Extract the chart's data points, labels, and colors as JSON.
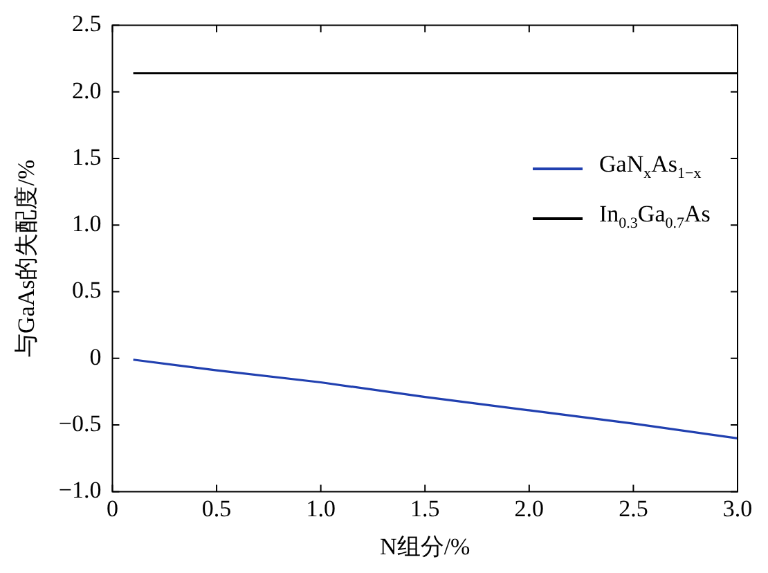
{
  "chart_data": {
    "type": "line",
    "xlabel": "N组分/%",
    "ylabel": "与GaAs的失配度/%",
    "xlim": [
      0,
      3
    ],
    "xticks": [
      0,
      0.5,
      {
        "value": 1,
        "label": "1.0"
      },
      1.5,
      {
        "value": 2,
        "label": "2.0"
      },
      2.5,
      {
        "value": 3,
        "label": "3.0"
      }
    ],
    "ylim": [
      -1,
      2.5
    ],
    "yticks": [
      {
        "value": -1,
        "label": "−1.0"
      },
      {
        "value": -0.5,
        "label": "−0.5"
      },
      0,
      0.5,
      {
        "value": 1,
        "label": "1.0"
      },
      1.5,
      {
        "value": 2,
        "label": "2.0"
      },
      2.5
    ],
    "grid": false,
    "legend": "right",
    "marker": "none",
    "line_style": "solid",
    "series": [
      {
        "name": "GaN$_{x}$As$_{1−x}$",
        "color": "#2140b0",
        "x": [
          0.1,
          0.5,
          1.0,
          1.5,
          2.0,
          2.5,
          3.0
        ],
        "values": [
          -0.01,
          -0.09,
          -0.18,
          -0.29,
          -0.39,
          -0.49,
          -0.6
        ]
      },
      {
        "name": "In$_{0.3}$Ga$_{0.7}$As",
        "color": "#000000",
        "x": [
          0.1,
          3.0
        ],
        "values": [
          2.14,
          2.14
        ]
      }
    ]
  }
}
